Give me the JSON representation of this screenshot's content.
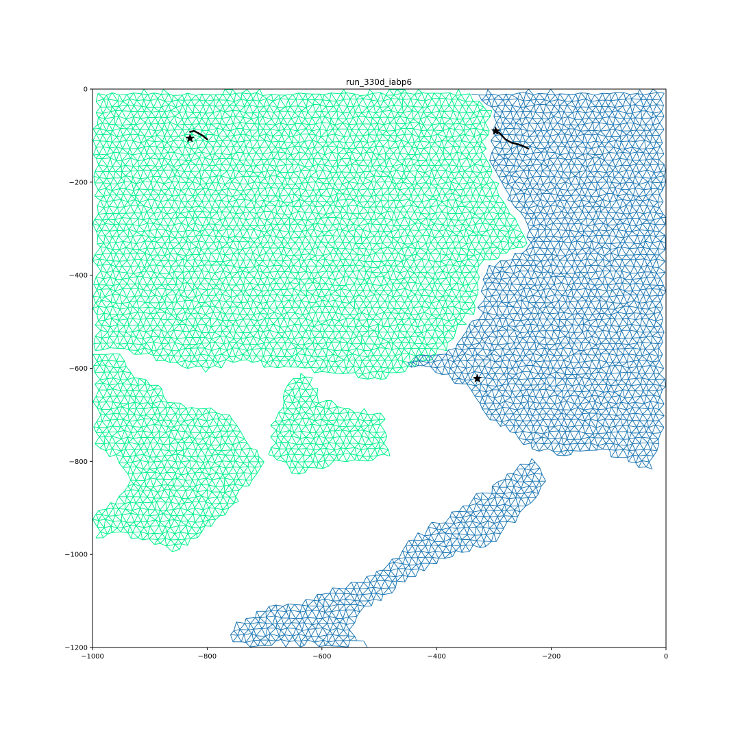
{
  "chart_data": {
    "type": "scatter",
    "title": "run_330d_iabp6",
    "xlabel": "",
    "ylabel": "",
    "xlim": [
      -1000,
      0
    ],
    "ylim": [
      -1200,
      0
    ],
    "x_ticks": [
      {
        "value": -1000,
        "label": "−1000"
      },
      {
        "value": -800,
        "label": "−800"
      },
      {
        "value": -600,
        "label": "−600"
      },
      {
        "value": -400,
        "label": "−400"
      },
      {
        "value": -200,
        "label": "−200"
      },
      {
        "value": 0,
        "label": "0"
      }
    ],
    "y_ticks": [
      {
        "value": 0,
        "label": "0"
      },
      {
        "value": -200,
        "label": "−200"
      },
      {
        "value": -400,
        "label": "−400"
      },
      {
        "value": -600,
        "label": "−600"
      },
      {
        "value": -800,
        "label": "−800"
      },
      {
        "value": -1000,
        "label": "−1000"
      },
      {
        "value": -1200,
        "label": "−1200"
      }
    ],
    "grid": false,
    "colors": {
      "green_mesh": "#00f08c",
      "blue_mesh": "#1f78b4",
      "track": "#000000"
    },
    "meshes": [
      {
        "color": "green_mesh",
        "outline": [
          [
            -1000,
            0
          ],
          [
            -350,
            0
          ],
          [
            -300,
            -50
          ],
          [
            -310,
            -150
          ],
          [
            -280,
            -230
          ],
          [
            -250,
            -300
          ],
          [
            -240,
            -340
          ],
          [
            -320,
            -380
          ],
          [
            -330,
            -480
          ],
          [
            -380,
            -560
          ],
          [
            -430,
            -600
          ],
          [
            -500,
            -630
          ],
          [
            -560,
            -620
          ],
          [
            -620,
            -610
          ],
          [
            -700,
            -600
          ],
          [
            -740,
            -590
          ],
          [
            -800,
            -610
          ],
          [
            -880,
            -590
          ],
          [
            -930,
            -570
          ],
          [
            -960,
            -560
          ],
          [
            -1000,
            -570
          ]
        ]
      },
      {
        "color": "green_mesh",
        "outline": [
          [
            -1000,
            -570
          ],
          [
            -960,
            -560
          ],
          [
            -940,
            -580
          ],
          [
            -920,
            -610
          ],
          [
            -880,
            -640
          ],
          [
            -860,
            -670
          ],
          [
            -800,
            -680
          ],
          [
            -760,
            -700
          ],
          [
            -720,
            -760
          ],
          [
            -700,
            -800
          ],
          [
            -740,
            -880
          ],
          [
            -780,
            -930
          ],
          [
            -810,
            -960
          ],
          [
            -850,
            -1000
          ],
          [
            -900,
            -980
          ],
          [
            -950,
            -960
          ],
          [
            -1000,
            -970
          ],
          [
            -1000,
            -900
          ],
          [
            -960,
            -880
          ],
          [
            -940,
            -830
          ],
          [
            -960,
            -800
          ],
          [
            -1000,
            -780
          ]
        ]
      },
      {
        "color": "green_mesh",
        "outline": [
          [
            -660,
            -610
          ],
          [
            -620,
            -610
          ],
          [
            -600,
            -660
          ],
          [
            -560,
            -680
          ],
          [
            -490,
            -690
          ],
          [
            -480,
            -790
          ],
          [
            -560,
            -810
          ],
          [
            -620,
            -820
          ],
          [
            -640,
            -840
          ],
          [
            -680,
            -800
          ],
          [
            -700,
            -790
          ],
          [
            -690,
            -720
          ],
          [
            -670,
            -660
          ]
        ]
      },
      {
        "color": "blue_mesh",
        "outline": [
          [
            -350,
            0
          ],
          [
            0,
            0
          ],
          [
            0,
            -710
          ],
          [
            -10,
            -760
          ],
          [
            -20,
            -830
          ],
          [
            -40,
            -820
          ],
          [
            -80,
            -800
          ],
          [
            -120,
            -780
          ],
          [
            -180,
            -790
          ],
          [
            -230,
            -780
          ],
          [
            -270,
            -750
          ],
          [
            -320,
            -700
          ],
          [
            -350,
            -650
          ],
          [
            -410,
            -610
          ],
          [
            -470,
            -590
          ],
          [
            -430,
            -570
          ],
          [
            -380,
            -560
          ],
          [
            -330,
            -480
          ],
          [
            -320,
            -380
          ],
          [
            -240,
            -340
          ],
          [
            -250,
            -300
          ],
          [
            -280,
            -230
          ],
          [
            -310,
            -150
          ],
          [
            -300,
            -50
          ]
        ]
      },
      {
        "color": "blue_mesh",
        "outline": [
          [
            -230,
            -780
          ],
          [
            -270,
            -820
          ],
          [
            -320,
            -860
          ],
          [
            -370,
            -900
          ],
          [
            -420,
            -940
          ],
          [
            -460,
            -980
          ],
          [
            -500,
            -1030
          ],
          [
            -560,
            -1060
          ],
          [
            -620,
            -1090
          ],
          [
            -700,
            -1110
          ],
          [
            -760,
            -1150
          ],
          [
            -760,
            -1190
          ],
          [
            -720,
            -1200
          ],
          [
            -520,
            -1200
          ],
          [
            -540,
            -1160
          ],
          [
            -520,
            -1120
          ],
          [
            -440,
            -1050
          ],
          [
            -360,
            -1000
          ],
          [
            -300,
            -980
          ],
          [
            -260,
            -930
          ],
          [
            -220,
            -880
          ],
          [
            -200,
            -840
          ]
        ]
      }
    ],
    "tracks": [
      {
        "x": [
          -830,
          -823,
          -815,
          -808,
          -800
        ],
        "y": [
          -92,
          -90,
          -95,
          -100,
          -108
        ]
      },
      {
        "x": [
          -298,
          -290,
          -280,
          -270,
          -260,
          -250,
          -240
        ],
        "y": [
          -88,
          -95,
          -108,
          -115,
          -118,
          -122,
          -128
        ]
      }
    ],
    "markers": [
      {
        "x": -830,
        "y": -106,
        "marker": "star"
      },
      {
        "x": -297,
        "y": -90,
        "marker": "star"
      },
      {
        "x": -329,
        "y": -622,
        "marker": "star"
      }
    ]
  }
}
